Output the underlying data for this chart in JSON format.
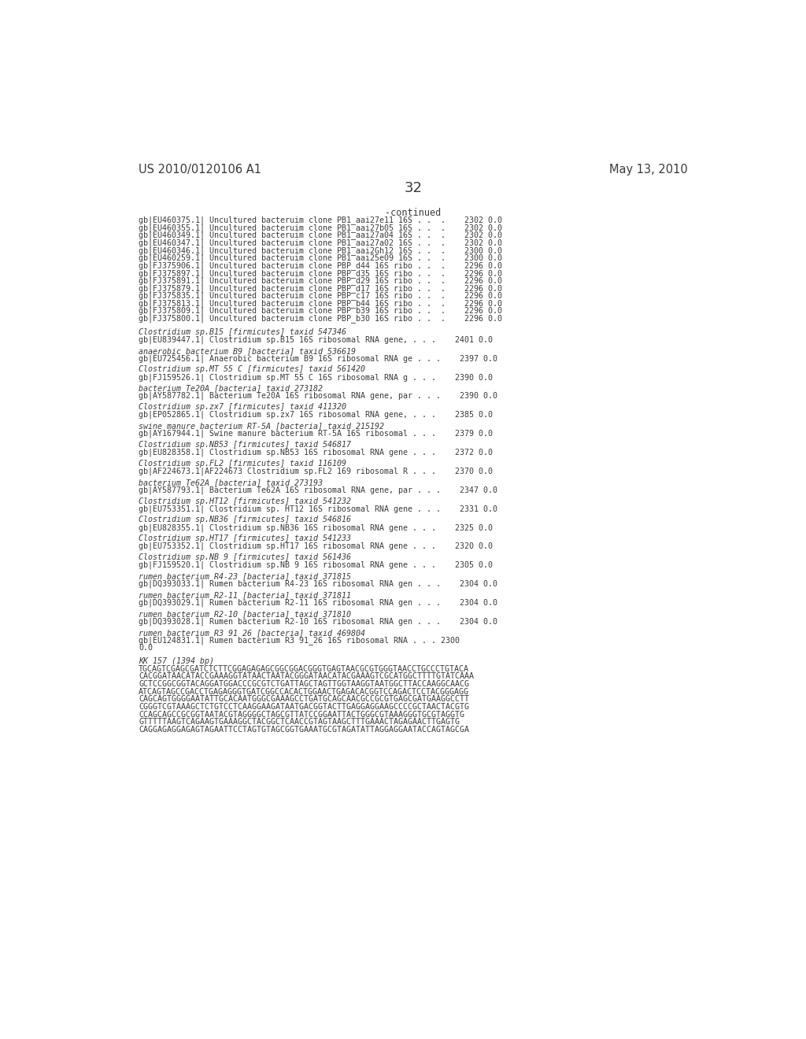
{
  "header_left": "US 2010/0120106 A1",
  "header_right": "May 13, 2010",
  "page_number": "32",
  "background_color": "#ffffff",
  "text_color": "#3a3a3a",
  "continued_label": "-continued",
  "monospace_lines": [
    "gb|EU460375.1| Uncultured bacteruim clone PB1_aai27e11 16S . .  .    2302 0.0",
    "gb|EU460355.1| Uncultured bacteruim clone PB1_aai27b05 16S . .  .    2302 0.0",
    "gb|EU460349.1| Uncultured bacteruim clone PB1_aai27a04 16S . .  .    2302 0.0",
    "gb|EU460347.1| Uncultured bacteruim clone PB1_aai27a02 16S . .  .    2302 0.0",
    "gb|EU460346.1| Uncultured bacteruim clone PB1_aai2Gh12 16S . .  .    2300 0.0",
    "gb|EU460259.1| Uncultured bacteruim clone PB1 aai25e09 16S . .  .    2300 0.0",
    "gb|FJ375906.1| Uncultured bacteruim clone PBP_d44 16S ribo . .  .    2296 0.0",
    "gb|FJ375897.1| Uncultured bacteruim clone PBP_d35 16S ribo . .  .    2296 0.0",
    "gb|FJ375891.1| Uncultured bacteruim clone PBP_d29 16S ribo . .  .    2296 0.0",
    "gb|FJ375879.1| Uncultured bacteruim clone PBP_d17 16S ribo . .  .    2296 0.0",
    "gb|FJ375835.1| Uncultured bacteruim clone PBP_c17 16S ribo . .  .    2296 0.0",
    "gb|FJ375813.1| Uncultured bacteruim clone PBP_b44 16S ribo . .  .    2296 0.0",
    "gb|FJ375809.1| Uncultured bacteruim clone PBP b39 16S ribo . .  .    2296 0.0",
    "gb|FJ375800.1| Uncultured bacteruim clone PBP_b30 16S ribo . .  .    2296 0.0"
  ],
  "sections": [
    {
      "italic_line": "Clostridium sp.B15 [firmicutes] taxid 547346",
      "mono_line": "gb|EU839447.1| Clostridium sp.B15 16S ribosomal RNA gene, . . .    2401 0.0"
    },
    {
      "italic_line": "anaerobic bacterium B9 [bacteria] taxid 536619",
      "mono_line": "gb|EU725456.1| Anaerobic bacterium B9 16S ribosomal RNA ge . . .    2397 0.0"
    },
    {
      "italic_line": "Clostridium sp.MT 55 C [firmicutes] taxid 561420",
      "mono_line": "gb|FJ159526.1| Clostridium sp.MT 55 C 16S ribosomal RNA g . . .    2390 0.0"
    },
    {
      "italic_line": "bacterium Te20A [bacteria] taxid 273182",
      "mono_line": "gb|AY587782.1| Bacterium Te20A 16S ribosomal RNA gene, par . . .    2390 0.0"
    },
    {
      "italic_line": "Clostridium sp.zx7 [firmicutes] taxid 411320",
      "mono_line": "gb|EP052865.1| Clostridium sp.zx7 16S ribosomal RNA gene, . . .    2385 0.0"
    },
    {
      "italic_line": "swine manure bacterium RT-5A [bacteria] taxid 215192",
      "mono_line": "gb|AY167944.1| Swine manure bacterium RT-5A 16S ribosomal . . .    2379 0.0"
    },
    {
      "italic_line": "Clostridium sp.NB53 [firmicutes] taxid 546817",
      "mono_line": "gb|EU828358.1| Clostridium sp.NB53 16S ribosomal RNA gene . . .    2372 0.0"
    },
    {
      "italic_line": "Clostridium sp.FL2 [firmicutes] taxid 116109",
      "mono_line": "gb|AF224673.1|AF224673 Clostridium sp.FL2 169 ribosomal R . . .    2370 0.0"
    },
    {
      "italic_line": "bacterium Te62A [bacteria] taxid 273193",
      "mono_line": "gb|AY587793.1| Bacterium Te62A 16S ribosomal RNA gene, par . . .    2347 0.0"
    },
    {
      "italic_line": "Clostridium sp.HT12 [firmicutes] taxid 541232",
      "mono_line": "gb|EU753351.1| Clostridium sp. HT12 16S ribosomal RNA gene . . .    2331 0.0"
    },
    {
      "italic_line": "Clostridium sp.NB36 [firmicutes] taxid 546816",
      "mono_line": "gb|EU828355.1| Clostridium sp.NB36 16S ribosomal RNA gene . . .    2325 0.0"
    },
    {
      "italic_line": "Clostridium sp.HT17 [firmicutes] taxid 541233",
      "mono_line": "gb|EU753352.1| Clostridium sp.HT17 16S ribosomal RNA gene . . .    2320 0.0"
    },
    {
      "italic_line": "Clostridium sp.NB 9 [firmicutes] taxid 561436",
      "mono_line": "gb|FJ159520.1| Clostridium sp.NB 9 16S ribosomal RNA gene . . .    2305 0.0"
    },
    {
      "italic_line": "rumen bacterium R4-23 [bacteria] taxid 371815",
      "mono_line": "gb|DQ393033.1| Rumen bacterium R4-23 16S ribosomal RNA gen . . .    2304 0.0"
    },
    {
      "italic_line": "rumen bacterium R2-11 [bacteria] taxid 371811",
      "mono_line": "gb|DQ393029.1| Rumen bacterium R2-11 16S ribosomal RNA gen . . .    2304 0.0"
    },
    {
      "italic_line": "rumen bacterium R2-10 [bacteria] taxid 371810",
      "mono_line": "gb|DQ393028.1| Rumen bacterium R2-10 16S ribosomal RNA gen . . .    2304 0.0"
    },
    {
      "italic_line": "rumen bacterium R3 91 26 [bacteria] taxid 469804",
      "mono_line": "gb|EU124831.1| Rumen bacterium R3 91_26 16S ribosomal RNA . . . 2300",
      "mono_line2": "0.0"
    }
  ],
  "kk_header": "KK 157 (1394 bp)",
  "dna_sequence_lines": [
    "TGCAGTCGAGCGATCTCTTCGGAGAGAGCGGCGGACGGGTGAGTAACGCGTGGGTAACCTGCCCTGTACA",
    "CACGGATAACATACCGAAAGGTATAACTAATACGGGATAACATACGAAAGTCGCATGGCTTTTGTATCAAA",
    "GCTCCGGCGGTACAGGATGGACCCGCGTCTGATTAGCTAGTTGGTAAGGTAATGGCTTACCAAGGCAACG",
    "ATCAGTAGCCGACCTGAGAGGGTGATCGGCCACACTGGAACTGAGACACGGTCCAGACTCCTACGGGAGG",
    "CAGCAGTGGGGAATATTGCACAATGGGCGAAAGCCTGATGCAGCAACGCCGCGTGAGCGATGAAGGCCTT",
    "CGGGTCGTAAAGCTCTGTCCTCAAGGAAGATAATGACGGTACTTGAGGAGGAAGCCCCGCTAACTACGTG",
    "CCAGCAGCCGCGGTAATACGTAGGGGCTAGCGTTATCCGGAATTACTGGGCGTAAAGGGTGCGTAGGTG",
    "GTTTTTAAGTCAGAAGTGAAAGGCTACGGCTCAACCGTAGTAAGCTTTGAAACTAGAGAACTTGAGTG",
    "CAGGAGAGGAGAGTAGAATTCCTAGTGTAGCGGTGAAATGCGTAGATATTAGGAGGAATACCAGTAGCGA"
  ]
}
